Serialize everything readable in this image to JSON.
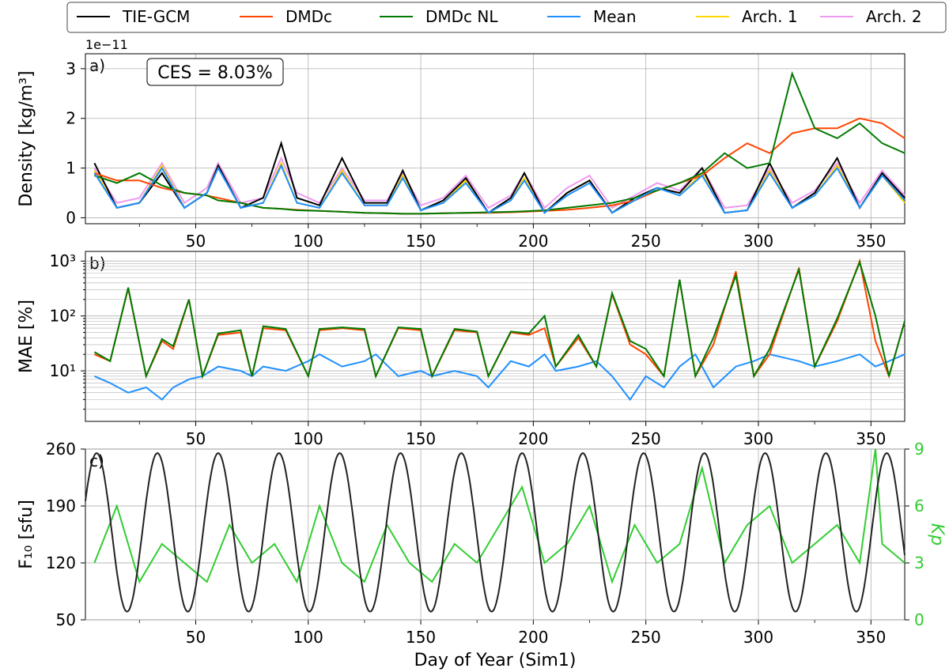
{
  "legend": {
    "items": [
      {
        "label": "TIE-GCM",
        "color": "#000000"
      },
      {
        "label": "DMDc",
        "color": "#ff4500"
      },
      {
        "label": "DMDc NL",
        "color": "#007a00"
      },
      {
        "label": "Mean",
        "color": "#1e90ff"
      },
      {
        "label": "Arch. 1",
        "color": "#ffd700"
      },
      {
        "label": "Arch. 2",
        "color": "#ee9af0"
      }
    ]
  },
  "chart_data": [
    {
      "type": "line",
      "panel_label": "a)",
      "annotation": "CES = 8.03%",
      "offset_label": "1e−11",
      "ylabel": "Density [kg/m³]",
      "xlim": [
        1,
        365
      ],
      "ylim": [
        -0.12,
        3.3
      ],
      "xticks": [
        50,
        100,
        150,
        200,
        250,
        300,
        350
      ],
      "yticks": [
        0,
        1,
        2,
        3
      ],
      "grid": true,
      "x": [
        5,
        15,
        25,
        35,
        45,
        55,
        60,
        70,
        80,
        88,
        95,
        105,
        115,
        125,
        135,
        142,
        150,
        160,
        170,
        180,
        190,
        196,
        205,
        215,
        225,
        235,
        245,
        255,
        265,
        275,
        285,
        295,
        305,
        315,
        325,
        335,
        345,
        355,
        365
      ],
      "series": [
        {
          "name": "TIE-GCM",
          "values": [
            1.1,
            0.2,
            0.3,
            0.9,
            0.2,
            0.5,
            1.05,
            0.2,
            0.4,
            1.5,
            0.4,
            0.25,
            1.2,
            0.3,
            0.3,
            0.95,
            0.15,
            0.35,
            0.8,
            0.1,
            0.4,
            0.9,
            0.1,
            0.5,
            0.75,
            0.1,
            0.4,
            0.6,
            0.5,
            1.0,
            0.1,
            0.15,
            1.1,
            0.2,
            0.5,
            1.2,
            0.2,
            0.9,
            0.4
          ]
        },
        {
          "name": "DMDc",
          "values": [
            0.9,
            0.75,
            0.75,
            0.6,
            0.5,
            0.45,
            0.4,
            0.3,
            0.2,
            0.18,
            0.16,
            0.14,
            0.12,
            0.1,
            0.09,
            0.08,
            0.08,
            0.09,
            0.1,
            0.1,
            0.11,
            0.12,
            0.14,
            0.16,
            0.2,
            0.25,
            0.35,
            0.55,
            0.7,
            0.85,
            1.2,
            1.5,
            1.3,
            1.7,
            1.8,
            1.8,
            2.0,
            1.9,
            1.6
          ]
        },
        {
          "name": "DMDc NL",
          "values": [
            0.85,
            0.7,
            0.9,
            0.65,
            0.5,
            0.45,
            0.35,
            0.3,
            0.2,
            0.18,
            0.15,
            0.14,
            0.12,
            0.1,
            0.09,
            0.08,
            0.08,
            0.09,
            0.1,
            0.11,
            0.12,
            0.13,
            0.15,
            0.2,
            0.25,
            0.3,
            0.4,
            0.55,
            0.7,
            0.9,
            1.3,
            1.0,
            1.1,
            2.9,
            1.8,
            1.6,
            1.9,
            1.5,
            1.3
          ]
        },
        {
          "name": "Mean",
          "values": [
            0.9,
            0.2,
            0.3,
            1.0,
            0.2,
            0.5,
            1.0,
            0.2,
            0.3,
            1.05,
            0.3,
            0.2,
            0.9,
            0.25,
            0.25,
            0.8,
            0.15,
            0.3,
            0.7,
            0.1,
            0.35,
            0.75,
            0.1,
            0.45,
            0.7,
            0.1,
            0.35,
            0.6,
            0.45,
            0.85,
            0.1,
            0.15,
            0.9,
            0.2,
            0.45,
            1.0,
            0.2,
            0.85,
            0.35
          ]
        },
        {
          "name": "Arch. 1",
          "values": [
            0.95,
            0.2,
            0.3,
            1.05,
            0.2,
            0.5,
            1.05,
            0.2,
            0.3,
            1.1,
            0.3,
            0.2,
            0.95,
            0.25,
            0.25,
            0.85,
            0.15,
            0.3,
            0.75,
            0.1,
            0.35,
            0.8,
            0.1,
            0.5,
            0.75,
            0.1,
            0.35,
            0.6,
            0.45,
            0.9,
            0.1,
            0.15,
            0.95,
            0.2,
            0.45,
            1.05,
            0.2,
            0.85,
            0.3
          ]
        },
        {
          "name": "Arch. 2",
          "values": [
            1.0,
            0.3,
            0.4,
            1.1,
            0.3,
            0.6,
            1.1,
            0.3,
            0.4,
            1.2,
            0.5,
            0.3,
            1.0,
            0.35,
            0.35,
            0.9,
            0.25,
            0.4,
            0.85,
            0.2,
            0.45,
            0.9,
            0.2,
            0.6,
            0.85,
            0.2,
            0.45,
            0.7,
            0.55,
            1.0,
            0.2,
            0.25,
            1.0,
            0.3,
            0.55,
            1.1,
            0.3,
            0.95,
            0.45
          ]
        }
      ]
    },
    {
      "type": "line",
      "panel_label": "b)",
      "ylabel": "MAE [%]",
      "yscale": "log",
      "xlim": [
        1,
        365
      ],
      "ylim": [
        1.2,
        1500
      ],
      "xticks": [
        50,
        100,
        150,
        200,
        250,
        300,
        350
      ],
      "ytick_labels": [
        "10¹",
        "10²",
        "10³"
      ],
      "grid": true,
      "x": [
        5,
        12,
        20,
        28,
        35,
        40,
        47,
        53,
        60,
        70,
        75,
        80,
        90,
        100,
        105,
        115,
        125,
        130,
        140,
        150,
        155,
        165,
        175,
        180,
        190,
        198,
        205,
        210,
        220,
        228,
        235,
        243,
        250,
        258,
        265,
        272,
        280,
        290,
        298,
        305,
        318,
        325,
        335,
        345,
        352,
        358,
        365
      ],
      "series": [
        {
          "name": "DMDc",
          "values": [
            20,
            15,
            320,
            8,
            35,
            25,
            200,
            8,
            45,
            50,
            8,
            60,
            55,
            8,
            55,
            60,
            55,
            8,
            60,
            55,
            8,
            55,
            50,
            8,
            50,
            45,
            60,
            12,
            40,
            12,
            250,
            30,
            20,
            8,
            450,
            8,
            30,
            650,
            8,
            20,
            750,
            12,
            80,
            1000,
            35,
            8,
            80
          ]
        },
        {
          "name": "DMDc NL",
          "values": [
            22,
            15,
            330,
            8,
            38,
            28,
            200,
            8,
            48,
            55,
            8,
            65,
            58,
            8,
            58,
            62,
            58,
            8,
            62,
            58,
            8,
            58,
            52,
            8,
            52,
            48,
            100,
            12,
            45,
            12,
            260,
            35,
            25,
            8,
            460,
            8,
            40,
            550,
            8,
            25,
            700,
            12,
            90,
            950,
            100,
            8,
            80
          ]
        },
        {
          "name": "Mean",
          "values": [
            8,
            6,
            4,
            5,
            3,
            5,
            7,
            8,
            12,
            10,
            8,
            12,
            10,
            15,
            20,
            12,
            15,
            20,
            8,
            10,
            8,
            10,
            8,
            5,
            15,
            12,
            20,
            10,
            12,
            15,
            8,
            3,
            8,
            5,
            12,
            20,
            5,
            12,
            15,
            20,
            15,
            12,
            15,
            20,
            12,
            15,
            20
          ]
        }
      ]
    },
    {
      "type": "line",
      "panel_label": "c)",
      "ylabel": "F₁₀ [sfu]",
      "ylabel_right": "Kp",
      "xlabel": "Day of Year (Sim1)",
      "xlim": [
        1,
        365
      ],
      "ylim": [
        50,
        260
      ],
      "ylim_right": [
        0,
        9
      ],
      "xticks": [
        50,
        100,
        150,
        200,
        250,
        300,
        350
      ],
      "yticks": [
        50,
        120,
        190,
        260
      ],
      "yticks_right": [
        0,
        3,
        6,
        9
      ],
      "grid": true,
      "series": [
        {
          "name": "F10",
          "axis": "left",
          "color": "#222222",
          "shape": "sinusoid",
          "period_days": 27,
          "min": 60,
          "max": 255,
          "first_peak_day": 6
        },
        {
          "name": "Kp",
          "axis": "right",
          "color": "#32cd32",
          "x": [
            5,
            15,
            25,
            35,
            45,
            55,
            65,
            75,
            85,
            95,
            105,
            115,
            125,
            135,
            145,
            155,
            165,
            175,
            185,
            195,
            205,
            215,
            225,
            235,
            245,
            255,
            265,
            275,
            285,
            295,
            305,
            315,
            325,
            335,
            345,
            352,
            355,
            365
          ],
          "values": [
            3,
            6,
            2,
            4,
            3,
            2,
            5,
            3,
            4,
            2,
            6,
            3,
            2,
            5,
            3,
            2,
            4,
            3,
            5,
            7,
            3,
            4,
            6,
            2,
            5,
            3,
            4,
            8,
            3,
            5,
            6,
            3,
            4,
            5,
            3,
            9,
            4,
            3
          ]
        }
      ]
    }
  ]
}
